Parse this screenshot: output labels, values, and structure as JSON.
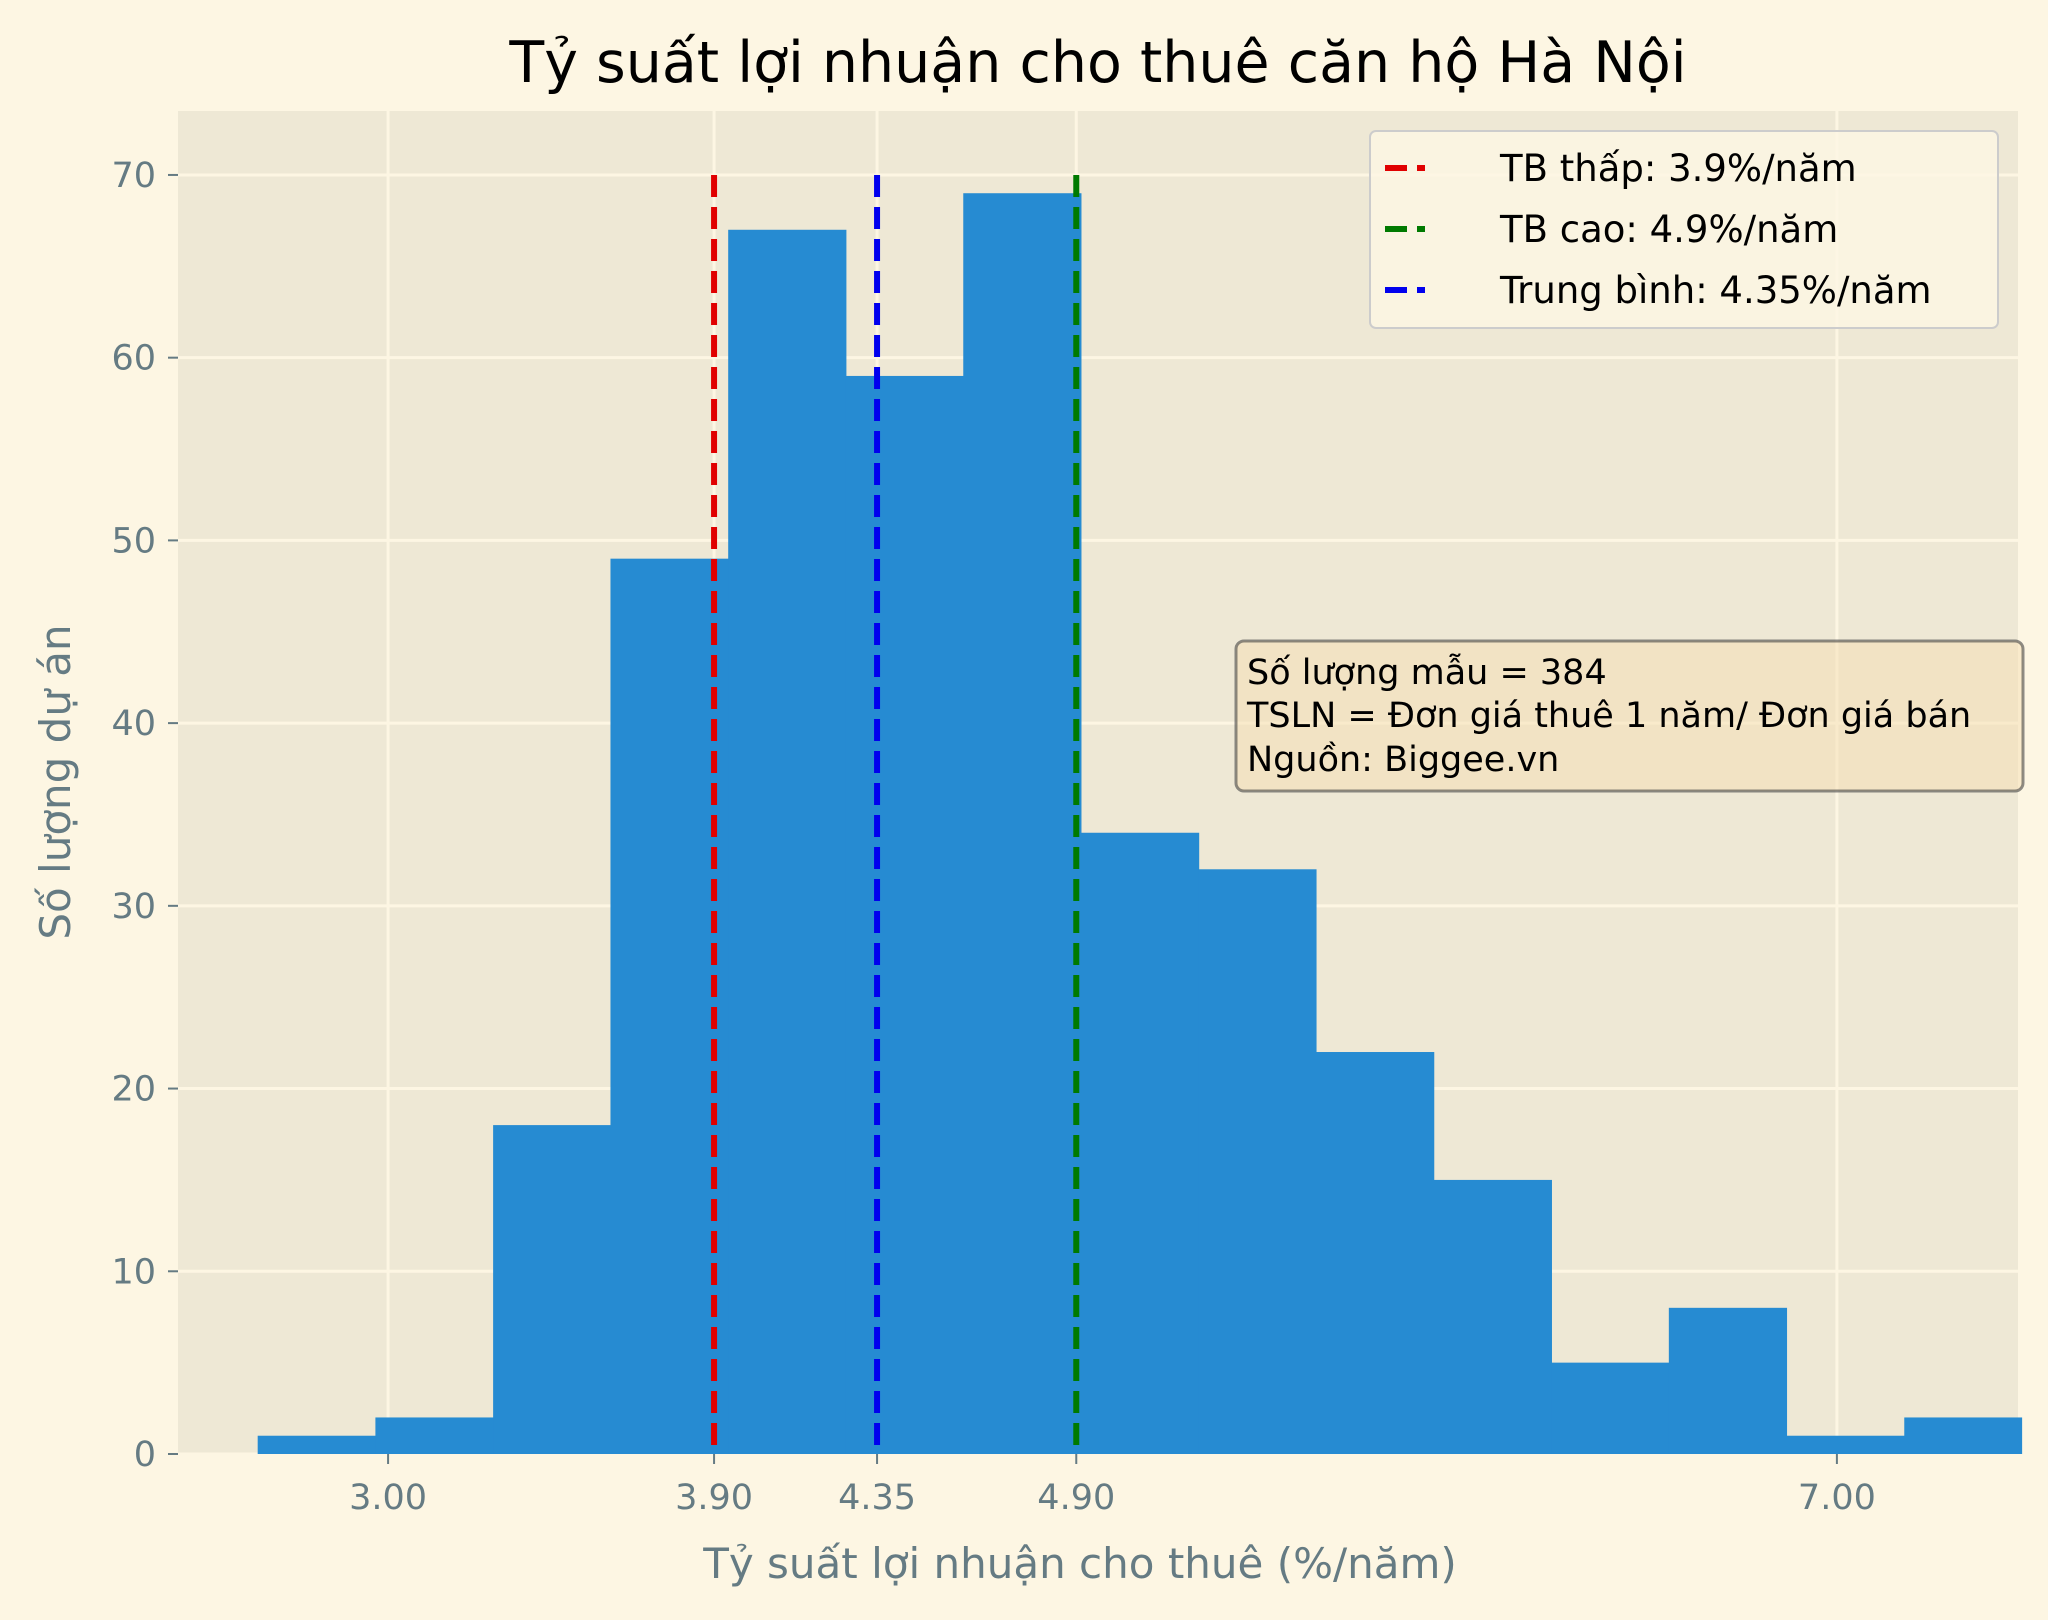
{
  "chart_data": {
    "type": "bar",
    "title": "Tỷ suất lợi nhuận cho thuê căn hộ Hà Nội",
    "xlabel": "Tỷ suất lợi nhuận cho thuê (%/năm)",
    "ylabel": "Số lượng dự án",
    "xlim": [
      2.42,
      7.5
    ],
    "ylim": [
      0,
      73.5
    ],
    "grid": true,
    "bins": [
      {
        "start": 2.64,
        "end": 2.965,
        "count": 1
      },
      {
        "start": 2.965,
        "end": 3.29,
        "count": 2
      },
      {
        "start": 3.29,
        "end": 3.614,
        "count": 18
      },
      {
        "start": 3.614,
        "end": 3.939,
        "count": 49
      },
      {
        "start": 3.939,
        "end": 4.264,
        "count": 67
      },
      {
        "start": 4.264,
        "end": 4.588,
        "count": 59
      },
      {
        "start": 4.588,
        "end": 4.913,
        "count": 69
      },
      {
        "start": 4.913,
        "end": 5.238,
        "count": 34
      },
      {
        "start": 5.238,
        "end": 5.562,
        "count": 32
      },
      {
        "start": 5.562,
        "end": 5.887,
        "count": 22
      },
      {
        "start": 5.887,
        "end": 6.212,
        "count": 15
      },
      {
        "start": 6.212,
        "end": 6.536,
        "count": 5
      },
      {
        "start": 6.536,
        "end": 6.861,
        "count": 8
      },
      {
        "start": 6.861,
        "end": 7.186,
        "count": 1
      },
      {
        "start": 7.186,
        "end": 7.51,
        "count": 2
      }
    ],
    "bar_color": "#268bd2",
    "x_ticks": [
      {
        "value": 3.0,
        "label": "3.00"
      },
      {
        "value": 3.9,
        "label": "3.90"
      },
      {
        "value": 4.35,
        "label": "4.35"
      },
      {
        "value": 4.9,
        "label": "4.90"
      },
      {
        "value": 7.0,
        "label": "7.00"
      }
    ],
    "y_ticks": [
      {
        "value": 0,
        "label": "0"
      },
      {
        "value": 10,
        "label": "10"
      },
      {
        "value": 20,
        "label": "20"
      },
      {
        "value": 30,
        "label": "30"
      },
      {
        "value": 40,
        "label": "40"
      },
      {
        "value": 50,
        "label": "50"
      },
      {
        "value": 60,
        "label": "60"
      },
      {
        "value": 70,
        "label": "70"
      }
    ],
    "reference_lines": [
      {
        "name": "TB thấp: 3.9%/năm",
        "x": 3.9,
        "color": "#e00000",
        "ymax": 70
      },
      {
        "name": "TB cao: 4.9%/năm",
        "x": 4.9,
        "color": "#007a00",
        "ymax": 70
      },
      {
        "name": "Trung bình: 4.35%/năm",
        "x": 4.35,
        "color": "#0000ee",
        "ymax": 70
      }
    ],
    "legend_position": "top-right",
    "annotation": [
      "Số lượng mẫu = 384",
      "TSLN = Đơn giá thuê 1 năm/ Đơn giá bán",
      "Nguồn: Biggee.vn"
    ]
  }
}
